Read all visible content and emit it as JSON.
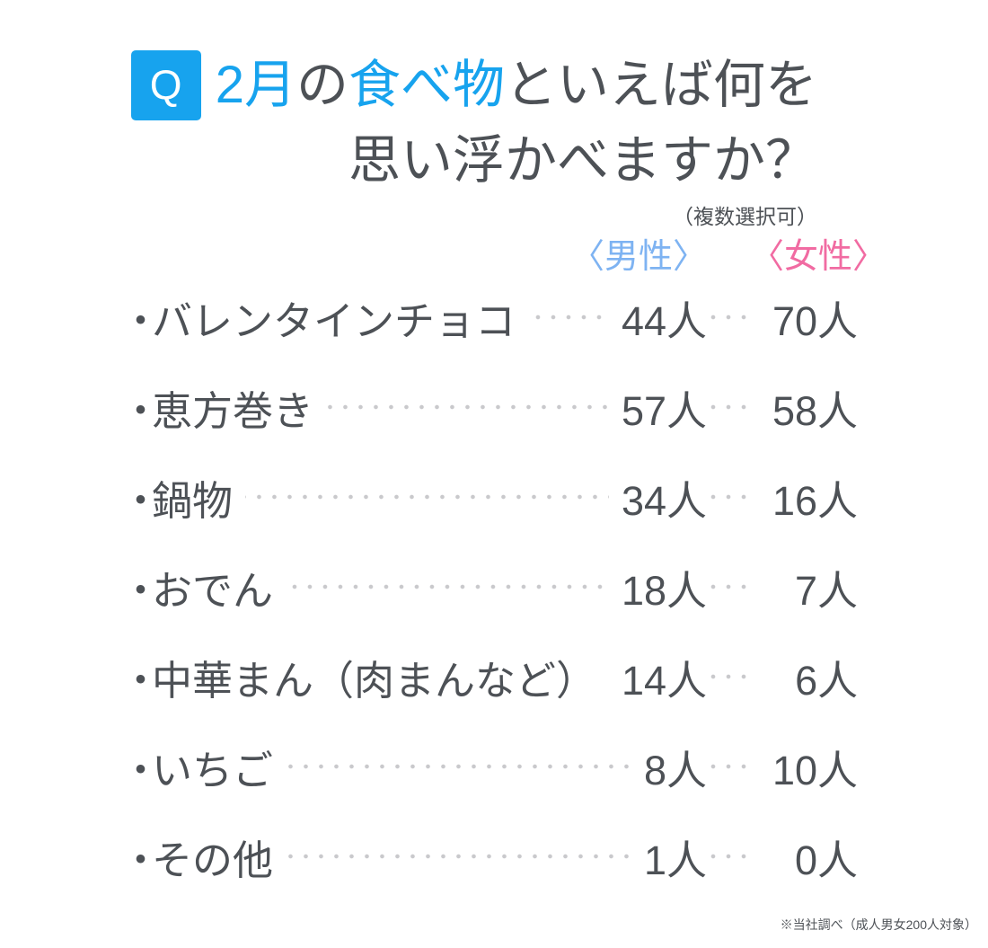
{
  "colors": {
    "accent": "#17a3ee",
    "dark": "#4d5156",
    "male": "#7eb3f2",
    "female": "#f16ba2",
    "dot": "#c9c9cc"
  },
  "title": {
    "q_label": "Q",
    "line1_parts": [
      {
        "text": "2月",
        "color": "accent"
      },
      {
        "text": "の",
        "color": "dark"
      },
      {
        "text": "食べ物",
        "color": "accent"
      },
      {
        "text": "といえば何を",
        "color": "dark"
      }
    ],
    "line2": "思い浮かべますか？",
    "note": "（複数選択可）"
  },
  "columns": {
    "male": "〈男性〉",
    "female": "〈女性〉"
  },
  "list": {
    "bullet": "・"
  },
  "rows": [
    {
      "label": "バレンタインチョコ",
      "male": "44人",
      "female": "70人"
    },
    {
      "label": "恵方巻き",
      "male": "57人",
      "female": "58人"
    },
    {
      "label": "鍋物",
      "male": "34人",
      "female": "16人"
    },
    {
      "label": "おでん",
      "male": "18人",
      "female": "7人"
    },
    {
      "label": "中華まん（肉まんなど）",
      "male": "14人",
      "female": "6人"
    },
    {
      "label": "いちご",
      "male": "8人",
      "female": "10人"
    },
    {
      "label": "その他",
      "male": "1人",
      "female": "0人"
    }
  ],
  "footer": "※当社調べ（成人男女200人対象）",
  "chart_data": {
    "type": "table",
    "title": "2月の食べ物といえば何を思い浮かべますか？",
    "subtitle": "（複数選択可）",
    "categories": [
      "バレンタインチョコ",
      "恵方巻き",
      "鍋物",
      "おでん",
      "中華まん（肉まんなど）",
      "いちご",
      "その他"
    ],
    "series": [
      {
        "name": "男性",
        "values": [
          44,
          57,
          34,
          18,
          14,
          8,
          1
        ]
      },
      {
        "name": "女性",
        "values": [
          70,
          58,
          16,
          7,
          6,
          10,
          0
        ]
      }
    ],
    "unit": "人",
    "legend_position": "top",
    "note": "※当社調べ（成人男女200人対象）"
  }
}
